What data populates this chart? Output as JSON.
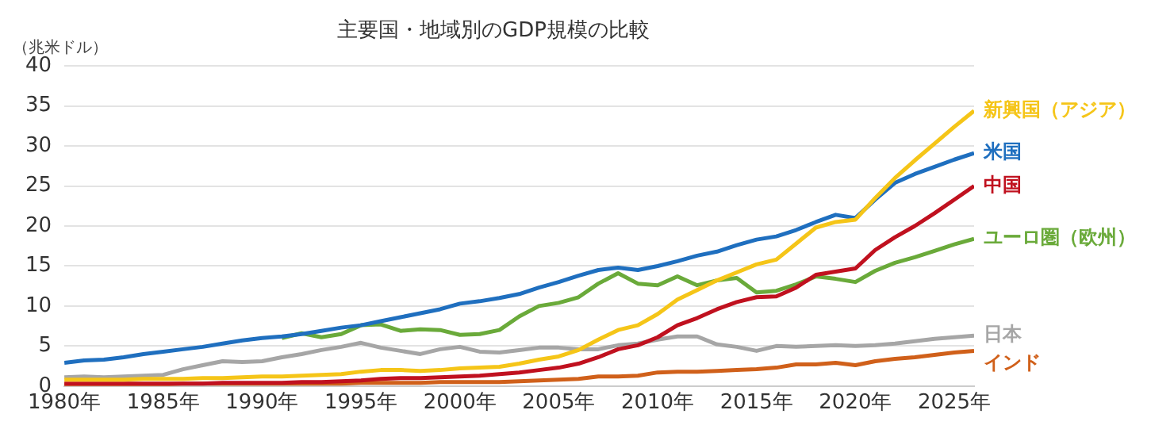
{
  "chart_data": {
    "type": "line",
    "title": "主要国・地域別のGDP規模の比較",
    "ylabel": "（兆米ドル）",
    "x": [
      1980,
      1981,
      1982,
      1983,
      1984,
      1985,
      1986,
      1987,
      1988,
      1989,
      1990,
      1991,
      1992,
      1993,
      1994,
      1995,
      1996,
      1997,
      1998,
      1999,
      2000,
      2001,
      2002,
      2003,
      2004,
      2005,
      2006,
      2007,
      2008,
      2009,
      2010,
      2011,
      2012,
      2013,
      2014,
      2015,
      2016,
      2017,
      2018,
      2019,
      2020,
      2021,
      2022,
      2023,
      2024,
      2025,
      2026
    ],
    "series": [
      {
        "name": "新興国（アジア）",
        "color": "#f5c518",
        "values": [
          0.8,
          0.8,
          0.8,
          0.8,
          0.9,
          0.9,
          0.9,
          1.0,
          1.0,
          1.1,
          1.2,
          1.2,
          1.3,
          1.4,
          1.5,
          1.8,
          2.0,
          2.0,
          1.9,
          2.0,
          2.2,
          2.3,
          2.4,
          2.8,
          3.3,
          3.7,
          4.5,
          5.8,
          7.0,
          7.6,
          9.0,
          10.8,
          12.0,
          13.2,
          14.2,
          15.2,
          15.8,
          17.8,
          19.8,
          20.5,
          20.8,
          23.5,
          26.0,
          28.2,
          30.3,
          32.4,
          34.4
        ]
      },
      {
        "name": "米国",
        "color": "#1f6fbf",
        "values": [
          2.9,
          3.2,
          3.3,
          3.6,
          4.0,
          4.3,
          4.6,
          4.9,
          5.3,
          5.7,
          6.0,
          6.2,
          6.5,
          6.9,
          7.3,
          7.6,
          8.1,
          8.6,
          9.1,
          9.6,
          10.3,
          10.6,
          11.0,
          11.5,
          12.3,
          13.0,
          13.8,
          14.5,
          14.8,
          14.5,
          15.0,
          15.6,
          16.3,
          16.8,
          17.6,
          18.3,
          18.7,
          19.5,
          20.5,
          21.4,
          21.0,
          23.3,
          25.4,
          26.5,
          27.4,
          28.3,
          29.1
        ]
      },
      {
        "name": "中国",
        "color": "#c0111f",
        "values": [
          0.3,
          0.3,
          0.3,
          0.3,
          0.3,
          0.3,
          0.3,
          0.3,
          0.4,
          0.4,
          0.4,
          0.4,
          0.5,
          0.5,
          0.6,
          0.7,
          0.9,
          1.0,
          1.0,
          1.1,
          1.2,
          1.3,
          1.5,
          1.7,
          2.0,
          2.3,
          2.8,
          3.6,
          4.6,
          5.1,
          6.1,
          7.6,
          8.5,
          9.6,
          10.5,
          11.1,
          11.2,
          12.3,
          13.9,
          14.3,
          14.7,
          17.0,
          18.6,
          20.0,
          21.6,
          23.3,
          25.0
        ]
      },
      {
        "name": "ユーロ圏（欧州）",
        "color": "#6aaa3a",
        "values": [
          null,
          null,
          null,
          null,
          null,
          null,
          null,
          null,
          null,
          null,
          null,
          6.0,
          6.6,
          6.1,
          6.5,
          7.6,
          7.7,
          6.9,
          7.1,
          7.0,
          6.4,
          6.5,
          7.0,
          8.7,
          10.0,
          10.4,
          11.1,
          12.8,
          14.1,
          12.8,
          12.6,
          13.7,
          12.6,
          13.2,
          13.5,
          11.7,
          11.9,
          12.7,
          13.7,
          13.4,
          13.0,
          14.4,
          15.4,
          16.1,
          16.9,
          17.7,
          18.4
        ]
      },
      {
        "name": "日本",
        "color": "#a6a6a6",
        "values": [
          1.1,
          1.2,
          1.1,
          1.2,
          1.3,
          1.4,
          2.1,
          2.6,
          3.1,
          3.0,
          3.1,
          3.6,
          4.0,
          4.5,
          4.9,
          5.4,
          4.8,
          4.4,
          4.0,
          4.6,
          4.9,
          4.3,
          4.2,
          4.5,
          4.8,
          4.8,
          4.6,
          4.6,
          5.1,
          5.3,
          5.8,
          6.2,
          6.2,
          5.2,
          4.9,
          4.4,
          5.0,
          4.9,
          5.0,
          5.1,
          5.0,
          5.1,
          5.3,
          5.6,
          5.9,
          6.1,
          6.3
        ]
      },
      {
        "name": "インド",
        "color": "#d0601a",
        "values": [
          0.2,
          0.2,
          0.2,
          0.2,
          0.2,
          0.2,
          0.3,
          0.3,
          0.3,
          0.3,
          0.3,
          0.3,
          0.3,
          0.3,
          0.3,
          0.4,
          0.4,
          0.4,
          0.4,
          0.5,
          0.5,
          0.5,
          0.5,
          0.6,
          0.7,
          0.8,
          0.9,
          1.2,
          1.2,
          1.3,
          1.7,
          1.8,
          1.8,
          1.9,
          2.0,
          2.1,
          2.3,
          2.7,
          2.7,
          2.9,
          2.6,
          3.1,
          3.4,
          3.6,
          3.9,
          4.2,
          4.4
        ]
      }
    ],
    "xlim": [
      1980,
      2026
    ],
    "xticks": [
      {
        "value": 1980,
        "label": "1980年"
      },
      {
        "value": 1985,
        "label": "1985年"
      },
      {
        "value": 1990,
        "label": "1990年"
      },
      {
        "value": 1995,
        "label": "1995年"
      },
      {
        "value": 2000,
        "label": "2000年"
      },
      {
        "value": 2005,
        "label": "2005年"
      },
      {
        "value": 2010,
        "label": "2010年"
      },
      {
        "value": 2015,
        "label": "2015年"
      },
      {
        "value": 2020,
        "label": "2020年"
      },
      {
        "value": 2025,
        "label": "2025年"
      }
    ],
    "ylim": [
      0,
      40
    ],
    "yticks": [
      0,
      5,
      10,
      15,
      20,
      25,
      30,
      35,
      40
    ],
    "grid": "y",
    "legend": false,
    "marker": "none",
    "line_style": "solid"
  }
}
